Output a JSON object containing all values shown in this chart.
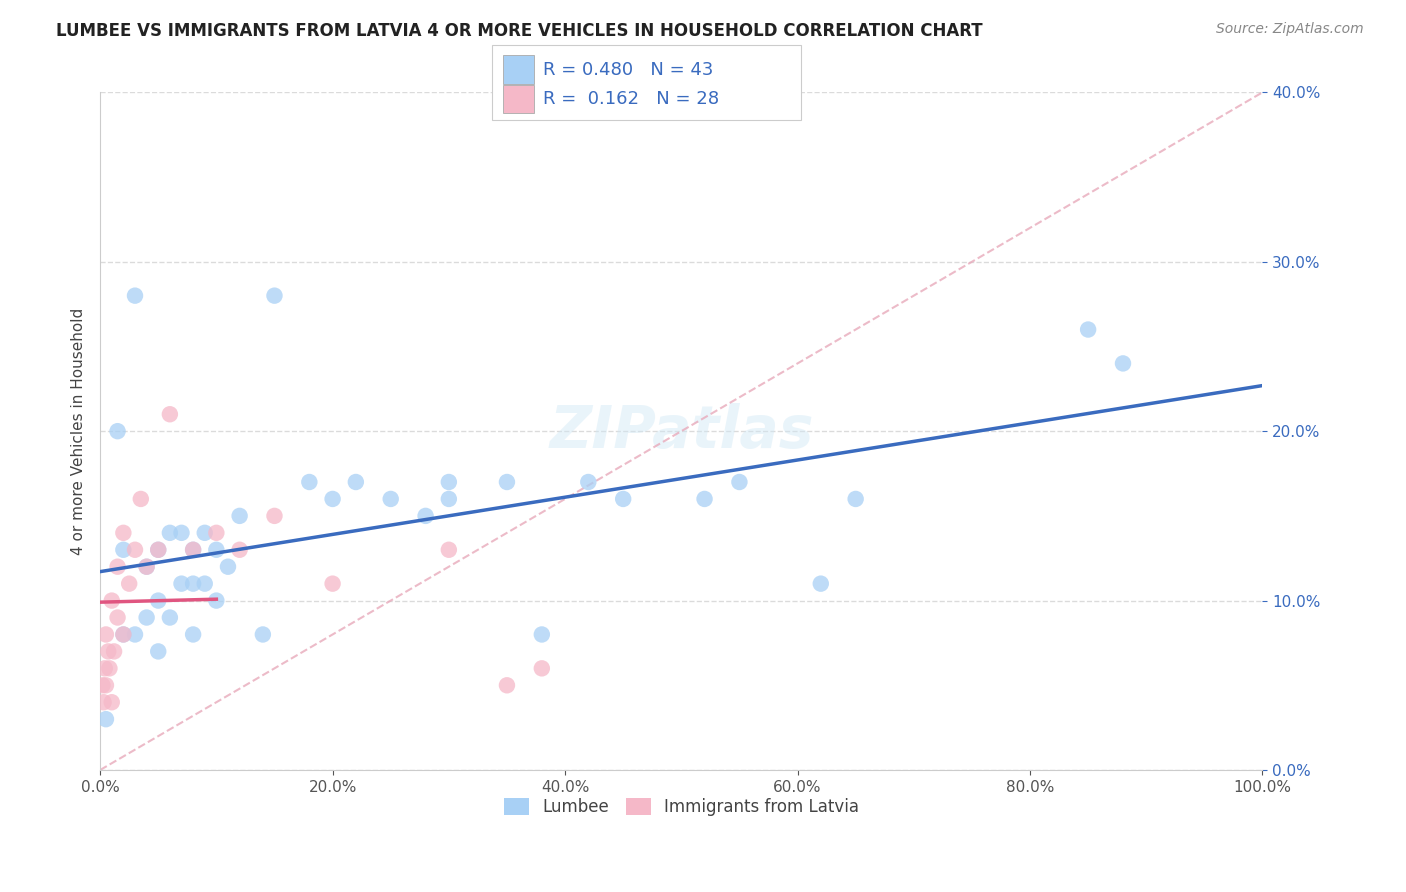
{
  "title": "LUMBEE VS IMMIGRANTS FROM LATVIA 4 OR MORE VEHICLES IN HOUSEHOLD CORRELATION CHART",
  "source": "Source: ZipAtlas.com",
  "ylabel": "4 or more Vehicles in Household",
  "legend_label1": "Lumbee",
  "legend_label2": "Immigrants from Latvia",
  "R1": 0.48,
  "N1": 43,
  "R2": 0.162,
  "N2": 28,
  "color1": "#a8d0f5",
  "color2": "#f5b8c8",
  "line_color1": "#3a6bbf",
  "line_color2": "#e05580",
  "diag_color": "#e8aabb",
  "background_color": "#ffffff",
  "grid_color": "#cccccc",
  "lumbee_x": [
    0.5,
    1.5,
    2,
    2,
    3,
    3,
    4,
    4,
    5,
    5,
    5,
    6,
    6,
    7,
    7,
    8,
    8,
    8,
    9,
    9,
    10,
    10,
    11,
    12,
    14,
    15,
    18,
    20,
    22,
    25,
    28,
    30,
    30,
    35,
    38,
    42,
    45,
    52,
    55,
    62,
    65,
    85,
    88
  ],
  "lumbee_y": [
    3,
    20,
    13,
    8,
    8,
    28,
    12,
    9,
    13,
    10,
    7,
    14,
    9,
    14,
    11,
    13,
    11,
    8,
    14,
    11,
    13,
    10,
    12,
    15,
    8,
    28,
    17,
    16,
    17,
    16,
    15,
    17,
    16,
    17,
    8,
    17,
    16,
    16,
    17,
    11,
    16,
    26,
    24
  ],
  "latvia_x": [
    0.2,
    0.3,
    0.4,
    0.5,
    0.5,
    0.7,
    0.8,
    1.0,
    1.0,
    1.2,
    1.5,
    1.5,
    2.0,
    2.0,
    2.5,
    3.0,
    3.5,
    4.0,
    5.0,
    6.0,
    8.0,
    10.0,
    12.0,
    15.0,
    20.0,
    30.0,
    35.0,
    38.0
  ],
  "latvia_y": [
    5,
    4,
    6,
    5,
    8,
    7,
    6,
    4,
    10,
    7,
    9,
    12,
    8,
    14,
    11,
    13,
    16,
    12,
    13,
    21,
    13,
    14,
    13,
    15,
    11,
    13,
    5,
    6
  ]
}
